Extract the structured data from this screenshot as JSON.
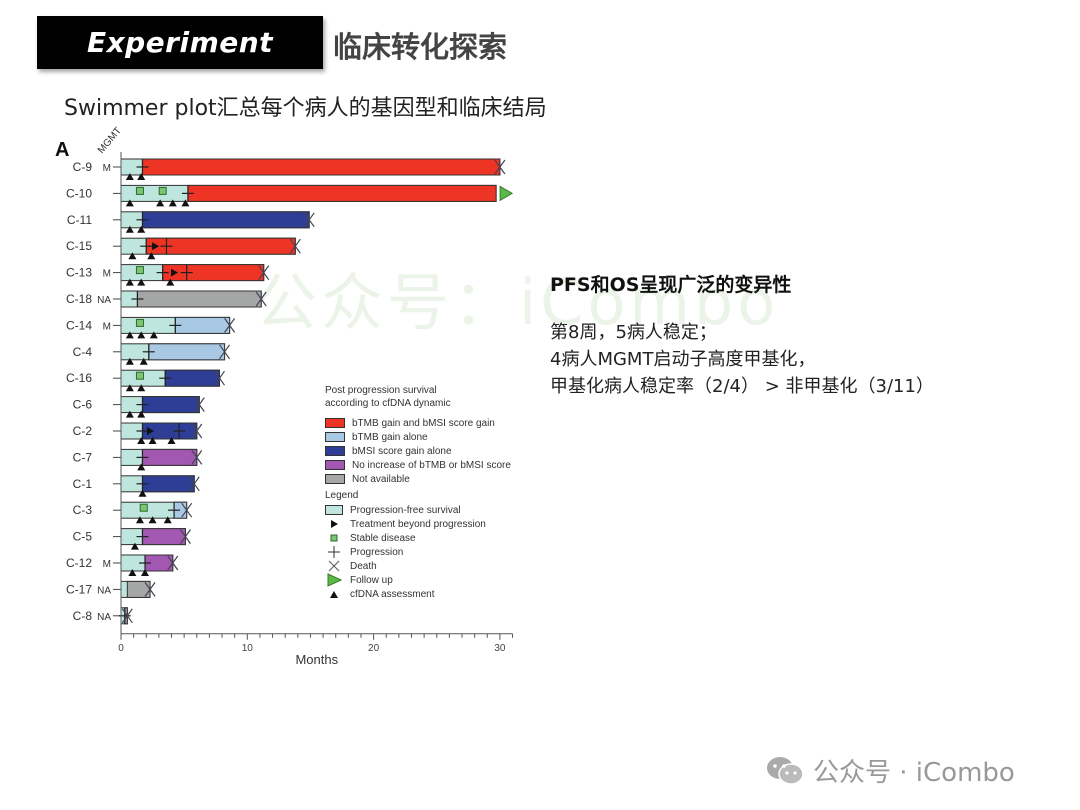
{
  "header": {
    "badge": "Experiment",
    "title": "临床转化探索"
  },
  "subtitle": "Swimmer plot汇总每个病人的基因型和临床结局",
  "panel_label": "A",
  "mgmt_label": "MGMT",
  "right_panel": {
    "heading": "PFS和OS呈现广泛的变异性",
    "lines": [
      "第8周，5病人稳定；",
      "4病人MGMT启动子高度甲基化，",
      "甲基化病人稳定率（2/4）  > 非甲基化（3/11）"
    ]
  },
  "watermark": "公众号：iCombo",
  "footer": {
    "text": "公众号 · iCombo"
  },
  "colors": {
    "pfs": "#bfe6de",
    "red": "#ee3424",
    "lightblue": "#a9c8e4",
    "darkblue": "#2e3d96",
    "purple": "#a257b0",
    "grey": "#a5a7a6",
    "followup": "#5cb847",
    "stable": "#7cc576"
  },
  "legend": {
    "pps_title_1": "Post progression survival",
    "pps_title_2": "according to cfDNA dynamic",
    "pps_items": [
      {
        "label": "bTMB gain and bMSI score gain",
        "color_key": "red"
      },
      {
        "label": "bTMB gain alone",
        "color_key": "lightblue"
      },
      {
        "label": "bMSI score gain alone",
        "color_key": "darkblue"
      },
      {
        "label": "No increase of bTMB or bMSI score",
        "color_key": "purple"
      },
      {
        "label": "Not available",
        "color_key": "grey"
      }
    ],
    "heading": "Legend",
    "symbols": [
      {
        "label": "Progression-free survival",
        "symbol": "pfs-swatch"
      },
      {
        "label": "Treatment beyond progression",
        "symbol": "right-triangle"
      },
      {
        "label": "Stable disease",
        "symbol": "green-square"
      },
      {
        "label": "Progression",
        "symbol": "plus"
      },
      {
        "label": "Death",
        "symbol": "x-cross"
      },
      {
        "label": "Follow up",
        "symbol": "green-triangle"
      },
      {
        "label": "cfDNA assessment",
        "symbol": "up-triangle"
      }
    ]
  },
  "chart_data": {
    "type": "bar",
    "subtype": "swimmer",
    "title": "",
    "xlabel": "Months",
    "ylabel": "",
    "xlim": [
      0,
      31
    ],
    "xticks": [
      0,
      10,
      20,
      30
    ],
    "minor_tick_step": 1,
    "legend_position": "right-inside",
    "grid": false,
    "categories": [
      "C-9",
      "C-10",
      "C-11",
      "C-15",
      "C-13",
      "C-18",
      "C-14",
      "C-4",
      "C-16",
      "C-6",
      "C-2",
      "C-7",
      "C-1",
      "C-3",
      "C-5",
      "C-12",
      "C-17",
      "C-8"
    ],
    "mgmt": [
      "M",
      "",
      "",
      "",
      "M",
      "NA",
      "M",
      "",
      "",
      "",
      "",
      "",
      "",
      "",
      "",
      "M",
      "NA",
      "NA"
    ],
    "series": [
      {
        "name": "Progression-free survival",
        "values": [
          1.7,
          5.3,
          1.7,
          2.0,
          3.3,
          1.3,
          4.3,
          2.2,
          3.5,
          1.7,
          1.7,
          1.7,
          1.7,
          4.2,
          1.7,
          1.9,
          0.5,
          0.3
        ]
      },
      {
        "name": "Overall survival",
        "values": [
          30.0,
          29.7,
          14.9,
          13.8,
          11.3,
          11.1,
          8.6,
          8.2,
          7.8,
          6.2,
          6.0,
          6.0,
          5.8,
          5.2,
          5.1,
          4.1,
          2.3,
          0.5
        ]
      }
    ],
    "pps_category": [
      "red",
      "red",
      "darkblue",
      "red",
      "red",
      "grey",
      "lightblue",
      "lightblue",
      "darkblue",
      "darkblue",
      "darkblue",
      "purple",
      "darkblue",
      "lightblue",
      "purple",
      "purple",
      "grey",
      "grey"
    ],
    "outcome": [
      "death",
      "follow-up",
      "death",
      "death",
      "death",
      "death",
      "death",
      "death",
      "death",
      "death",
      "death",
      "death",
      "death",
      "death",
      "death",
      "death",
      "death",
      "death"
    ],
    "progression_marks": [
      [
        1.7
      ],
      [
        5.3
      ],
      [
        1.7
      ],
      [
        2.0,
        3.6
      ],
      [
        3.3,
        5.2
      ],
      [
        1.3
      ],
      [
        4.3
      ],
      [
        2.2
      ],
      [
        3.5
      ],
      [
        1.7
      ],
      [
        1.7,
        4.6
      ],
      [
        1.7
      ],
      [
        1.7
      ],
      [
        4.2
      ],
      [
        1.7
      ],
      [
        1.9
      ],
      [],
      [
        0.3
      ]
    ],
    "treatment_beyond_progression": [
      [],
      [],
      [],
      [
        2.7
      ],
      [
        4.2
      ],
      [],
      [],
      [],
      [],
      [],
      [
        2.3
      ],
      [],
      [],
      [],
      [],
      [],
      [],
      []
    ],
    "stable_disease": [
      [],
      [
        1.5,
        3.3
      ],
      [],
      [],
      [
        1.5
      ],
      [],
      [
        1.5
      ],
      [],
      [
        1.5
      ],
      [],
      [],
      [],
      [],
      [
        1.8
      ],
      [],
      [],
      [],
      []
    ],
    "cfdna_assessment": [
      [
        0.7,
        1.6
      ],
      [
        0.7,
        3.1,
        4.1,
        5.1
      ],
      [
        0.7,
        1.6
      ],
      [
        0.9,
        2.4
      ],
      [
        0.7,
        1.6,
        3.9
      ],
      [],
      [
        0.7,
        1.6,
        2.6
      ],
      [
        0.7,
        1.8
      ],
      [
        0.7,
        1.6
      ],
      [
        0.7,
        1.6
      ],
      [
        1.6,
        2.5,
        4.0
      ],
      [
        1.6
      ],
      [
        1.7
      ],
      [
        1.5,
        2.5,
        3.7
      ],
      [
        1.1
      ],
      [
        0.9,
        1.9
      ],
      [],
      []
    ]
  }
}
